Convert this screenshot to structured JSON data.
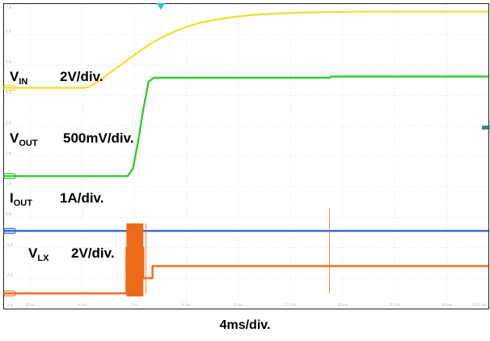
{
  "chart_data": {
    "type": "line",
    "title": "",
    "xlabel": "4ms/div.",
    "ylabel": "",
    "xlim": [
      -10,
      27.2
    ],
    "ylim": [
      -3,
      7
    ],
    "x_ticks": [
      {
        "value": -8,
        "label": "-8 ms"
      },
      {
        "value": -4,
        "label": "-4 ms"
      },
      {
        "value": 0,
        "label": "0 s"
      },
      {
        "value": 4,
        "label": "4 ms"
      },
      {
        "value": 8,
        "label": "8 ms"
      },
      {
        "value": 12,
        "label": "12 ms"
      },
      {
        "value": 16,
        "label": "16 ms"
      },
      {
        "value": 20,
        "label": "20 ms"
      },
      {
        "value": 24,
        "label": "24 ms"
      },
      {
        "value": 27.2,
        "label": "27.2 ms"
      }
    ],
    "y_ticks": [
      {
        "value": 7,
        "label": "7 A"
      },
      {
        "value": 6,
        "label": "6 A"
      },
      {
        "value": 5,
        "label": "5 A"
      },
      {
        "value": 4,
        "label": "4 A"
      },
      {
        "value": 3,
        "label": "3 A"
      },
      {
        "value": 2,
        "label": "2 A"
      },
      {
        "value": 1,
        "label": "1 A"
      },
      {
        "value": 0,
        "label": "0 A"
      },
      {
        "value": -1,
        "label": "-1 A"
      },
      {
        "value": -2,
        "label": "-2 A"
      },
      {
        "value": -3,
        "label": "-3 A"
      }
    ],
    "grid": true,
    "trigger_time": 0,
    "series": [
      {
        "name": "VIN",
        "color": "#f0e040",
        "x": [
          -10,
          -3.8,
          -3.4,
          -2.8,
          -2.0,
          -1.2,
          -0.4,
          0.4,
          1.2,
          2.0,
          3.0,
          4.0,
          5.0,
          6.0,
          7.5,
          9.0,
          11.0,
          13.0,
          15.0,
          18.0,
          22.0,
          27.2
        ],
        "y": [
          4.25,
          4.25,
          4.3,
          4.45,
          4.7,
          4.95,
          5.2,
          5.45,
          5.68,
          5.88,
          6.08,
          6.25,
          6.38,
          6.47,
          6.57,
          6.64,
          6.69,
          6.72,
          6.74,
          6.75,
          6.75,
          6.75
        ]
      },
      {
        "name": "VOUT",
        "color": "#33cc33",
        "x": [
          -10,
          -0.5,
          -0.1,
          0.3,
          0.7,
          1.1,
          1.5,
          15.0,
          15.1,
          27.2
        ],
        "y": [
          1.35,
          1.35,
          1.6,
          2.5,
          3.55,
          4.45,
          4.58,
          4.58,
          4.62,
          4.62
        ]
      },
      {
        "name": "IOUT",
        "color": "#3366dd",
        "x": [
          -10,
          27.2
        ],
        "y": [
          -0.45,
          -0.45
        ]
      },
      {
        "name": "VLX",
        "color": "#ee6a1a",
        "x": [
          -10,
          -0.6,
          -0.6,
          0.7,
          0.7,
          1.4,
          1.4,
          27.2
        ],
        "y": [
          -2.5,
          -2.5,
          -1.0,
          -1.0,
          -2.0,
          -2.0,
          -1.6,
          -1.6
        ]
      }
    ],
    "annotations": [
      {
        "channel": "V",
        "subscript": "IN",
        "scale": "2V/div."
      },
      {
        "channel": "V",
        "subscript": "OUT",
        "scale": "500mV/div."
      },
      {
        "channel": "I",
        "subscript": "OUT",
        "scale": "1A/div."
      },
      {
        "channel": "V",
        "subscript": "LX",
        "scale": "2V/div."
      }
    ]
  }
}
